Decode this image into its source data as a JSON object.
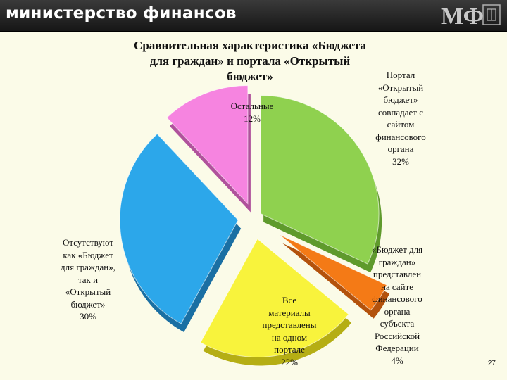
{
  "header": {
    "title": "министерство финансов",
    "logo_text": "МФ"
  },
  "colors": {
    "header_bg": "#1e1e1e",
    "slide_bg": "#fbfbe8"
  },
  "chart_data": {
    "type": "pie",
    "title": "Сравнительная характеристика «Бюджета для граждан» и портала «Открытый бюджет»",
    "legend": "none (labels placed beside slices)",
    "slices": [
      {
        "label": "Портал «Открытый бюджет» совпадает с сайтом финансового органа 32%",
        "value": 32,
        "color": "#8fd14f"
      },
      {
        "label": "«Бюджет для граждан» представлен на сайте финансового органа субъекта Российской Федерации 4%",
        "value": 4,
        "color": "#f47a16"
      },
      {
        "label": "Все материалы представлены на одном портале 22%",
        "value": 22,
        "color": "#f8f33c"
      },
      {
        "label": "Отсутствуют как «Бюджет для граждан», так и «Открытый бюджет» 30%",
        "value": 30,
        "color": "#2ca7ea"
      },
      {
        "label": "Остальные 12%",
        "value": 12,
        "color": "#f684e0"
      }
    ]
  },
  "labels": {
    "open_budget": "Портал\n«Открытый\nбюджет»\nсовпадает с\nсайтом\nфинансового\nоргана\n32%",
    "budget_citizens": "«Бюджет для\nграждан»\nпредставлен\nна сайте\nфинансового\nоргана\nсубъекта\nРоссийской\nФедерации\n4%",
    "all_materials": "Все\nматериалы\nпредставлены\nна одном\nпортале\n22%",
    "absent": "Отсутствуют\nкак «Бюджет\nдля граждан»,\nтак и\n«Открытый\nбюджет»\n30%",
    "others": "Остальные\n12%"
  },
  "page_number": "27"
}
